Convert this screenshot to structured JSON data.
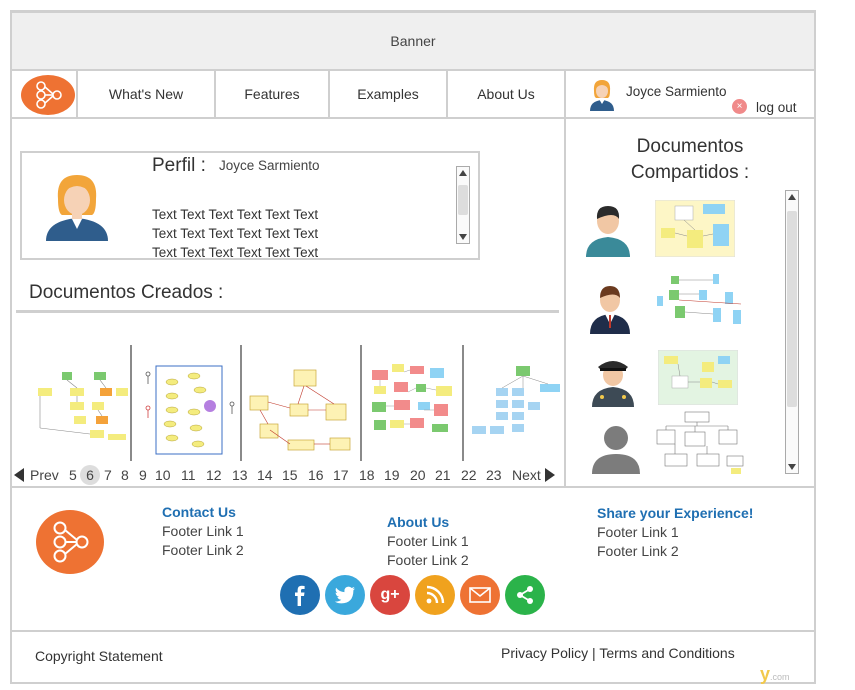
{
  "banner": {
    "label": "Banner"
  },
  "nav": {
    "items": [
      {
        "label": "What's New"
      },
      {
        "label": "Features"
      },
      {
        "label": "Examples"
      },
      {
        "label": "About Us"
      }
    ],
    "user": {
      "name": "Joyce Sarmiento",
      "logout_label": "log out"
    }
  },
  "profile": {
    "title": "Perfil :",
    "name": "Joyce Sarmiento",
    "lines": [
      "Text Text Text Text Text Text",
      "Text Text Text Text Text Text",
      "Text Text Text Text Text Text"
    ]
  },
  "created": {
    "title": "Documentos Creados :"
  },
  "pager": {
    "prev": "Prev",
    "next": "Next",
    "pages": [
      "5",
      "6",
      "7",
      "8",
      "9",
      "10",
      "11",
      "12",
      "13",
      "14",
      "15",
      "16",
      "17",
      "18",
      "19",
      "20",
      "21",
      "22",
      "23"
    ],
    "current": "6"
  },
  "shared": {
    "title_line1": "Documentos",
    "title_line2": "Compartidos :"
  },
  "footer": {
    "col1": {
      "head": "Contact Us",
      "links": [
        "Footer Link 1",
        "Footer Link 2"
      ]
    },
    "col2": {
      "head": "About Us",
      "links": [
        "Footer Link 1",
        "Footer Link 2"
      ]
    },
    "col3": {
      "head": "Share your Experience!",
      "links": [
        "Footer Link 1",
        "Footer Link 2"
      ]
    },
    "social": [
      {
        "icon": "facebook-icon",
        "glyph": "f",
        "color": "#1f6fb2"
      },
      {
        "icon": "twitter-icon",
        "glyph": "t",
        "color": "#3aa8dc"
      },
      {
        "icon": "google-plus-icon",
        "glyph": "g+",
        "color": "#d9463e"
      },
      {
        "icon": "rss-icon",
        "glyph": "rss",
        "color": "#f0a21e"
      },
      {
        "icon": "mail-icon",
        "glyph": "mail",
        "color": "#ee7233"
      },
      {
        "icon": "share-icon",
        "glyph": "share",
        "color": "#2bb34a"
      }
    ],
    "copyright": "Copyright Statement",
    "privacy": "Privacy Policy",
    "legal_separator": "|",
    "terms": "Terms and Conditions"
  },
  "colors": {
    "brand_orange": "#ee7233",
    "link_blue": "#1f6fb2",
    "border_gray": "#cfcfcf"
  },
  "watermark": {
    "text": "y",
    "suffix": ".com"
  }
}
